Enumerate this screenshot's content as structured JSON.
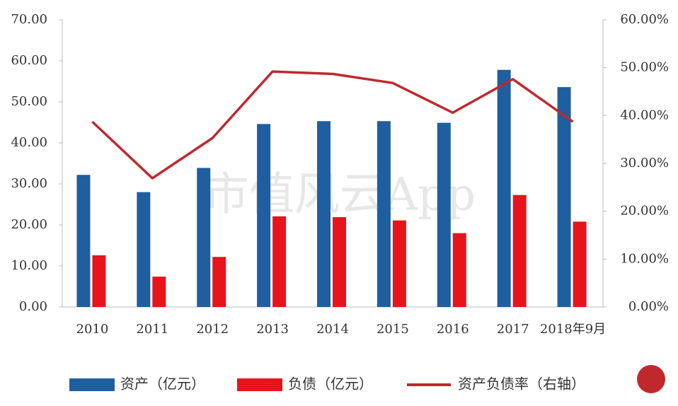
{
  "chart_data": {
    "type": "bar-line",
    "watermark": "市值风云App",
    "categories": [
      "2010",
      "2011",
      "2012",
      "2013",
      "2014",
      "2015",
      "2016",
      "2017",
      "2018年9月"
    ],
    "series": [
      {
        "name": "资产（亿元）",
        "type": "bar",
        "color": "#1f5fa0",
        "values": [
          32.2,
          28.0,
          33.9,
          44.6,
          45.3,
          45.3,
          44.9,
          57.8,
          53.6
        ]
      },
      {
        "name": "负债（亿元）",
        "type": "bar",
        "color": "#e8141b",
        "values": [
          12.6,
          7.4,
          12.2,
          22.1,
          21.9,
          21.1,
          18.0,
          27.3,
          20.8
        ]
      },
      {
        "name": "资产负债率（右轴）",
        "type": "line",
        "axis": "y2",
        "color": "#c0282d",
        "values": [
          38.7,
          26.9,
          35.3,
          49.2,
          48.7,
          46.8,
          40.6,
          47.6,
          38.7
        ]
      }
    ],
    "ylim": [
      0,
      70
    ],
    "yticks": [
      {
        "value": 0,
        "label": "0.00"
      },
      {
        "value": 10,
        "label": "10.00"
      },
      {
        "value": 20,
        "label": "20.00"
      },
      {
        "value": 30,
        "label": "30.00"
      },
      {
        "value": 40,
        "label": "40.00"
      },
      {
        "value": 50,
        "label": "50.00"
      },
      {
        "value": 60,
        "label": "60.00"
      },
      {
        "value": 70,
        "label": "70.00"
      }
    ],
    "y2lim": [
      0,
      60
    ],
    "y2ticks": [
      {
        "value": 0,
        "label": "0.00%"
      },
      {
        "value": 10,
        "label": "10.00%"
      },
      {
        "value": 20,
        "label": "20.00%"
      },
      {
        "value": 30,
        "label": "30.00%"
      },
      {
        "value": 40,
        "label": "40.00%"
      },
      {
        "value": 50,
        "label": "50.00%"
      },
      {
        "value": 60,
        "label": "60.00%"
      }
    ],
    "grid": false
  }
}
